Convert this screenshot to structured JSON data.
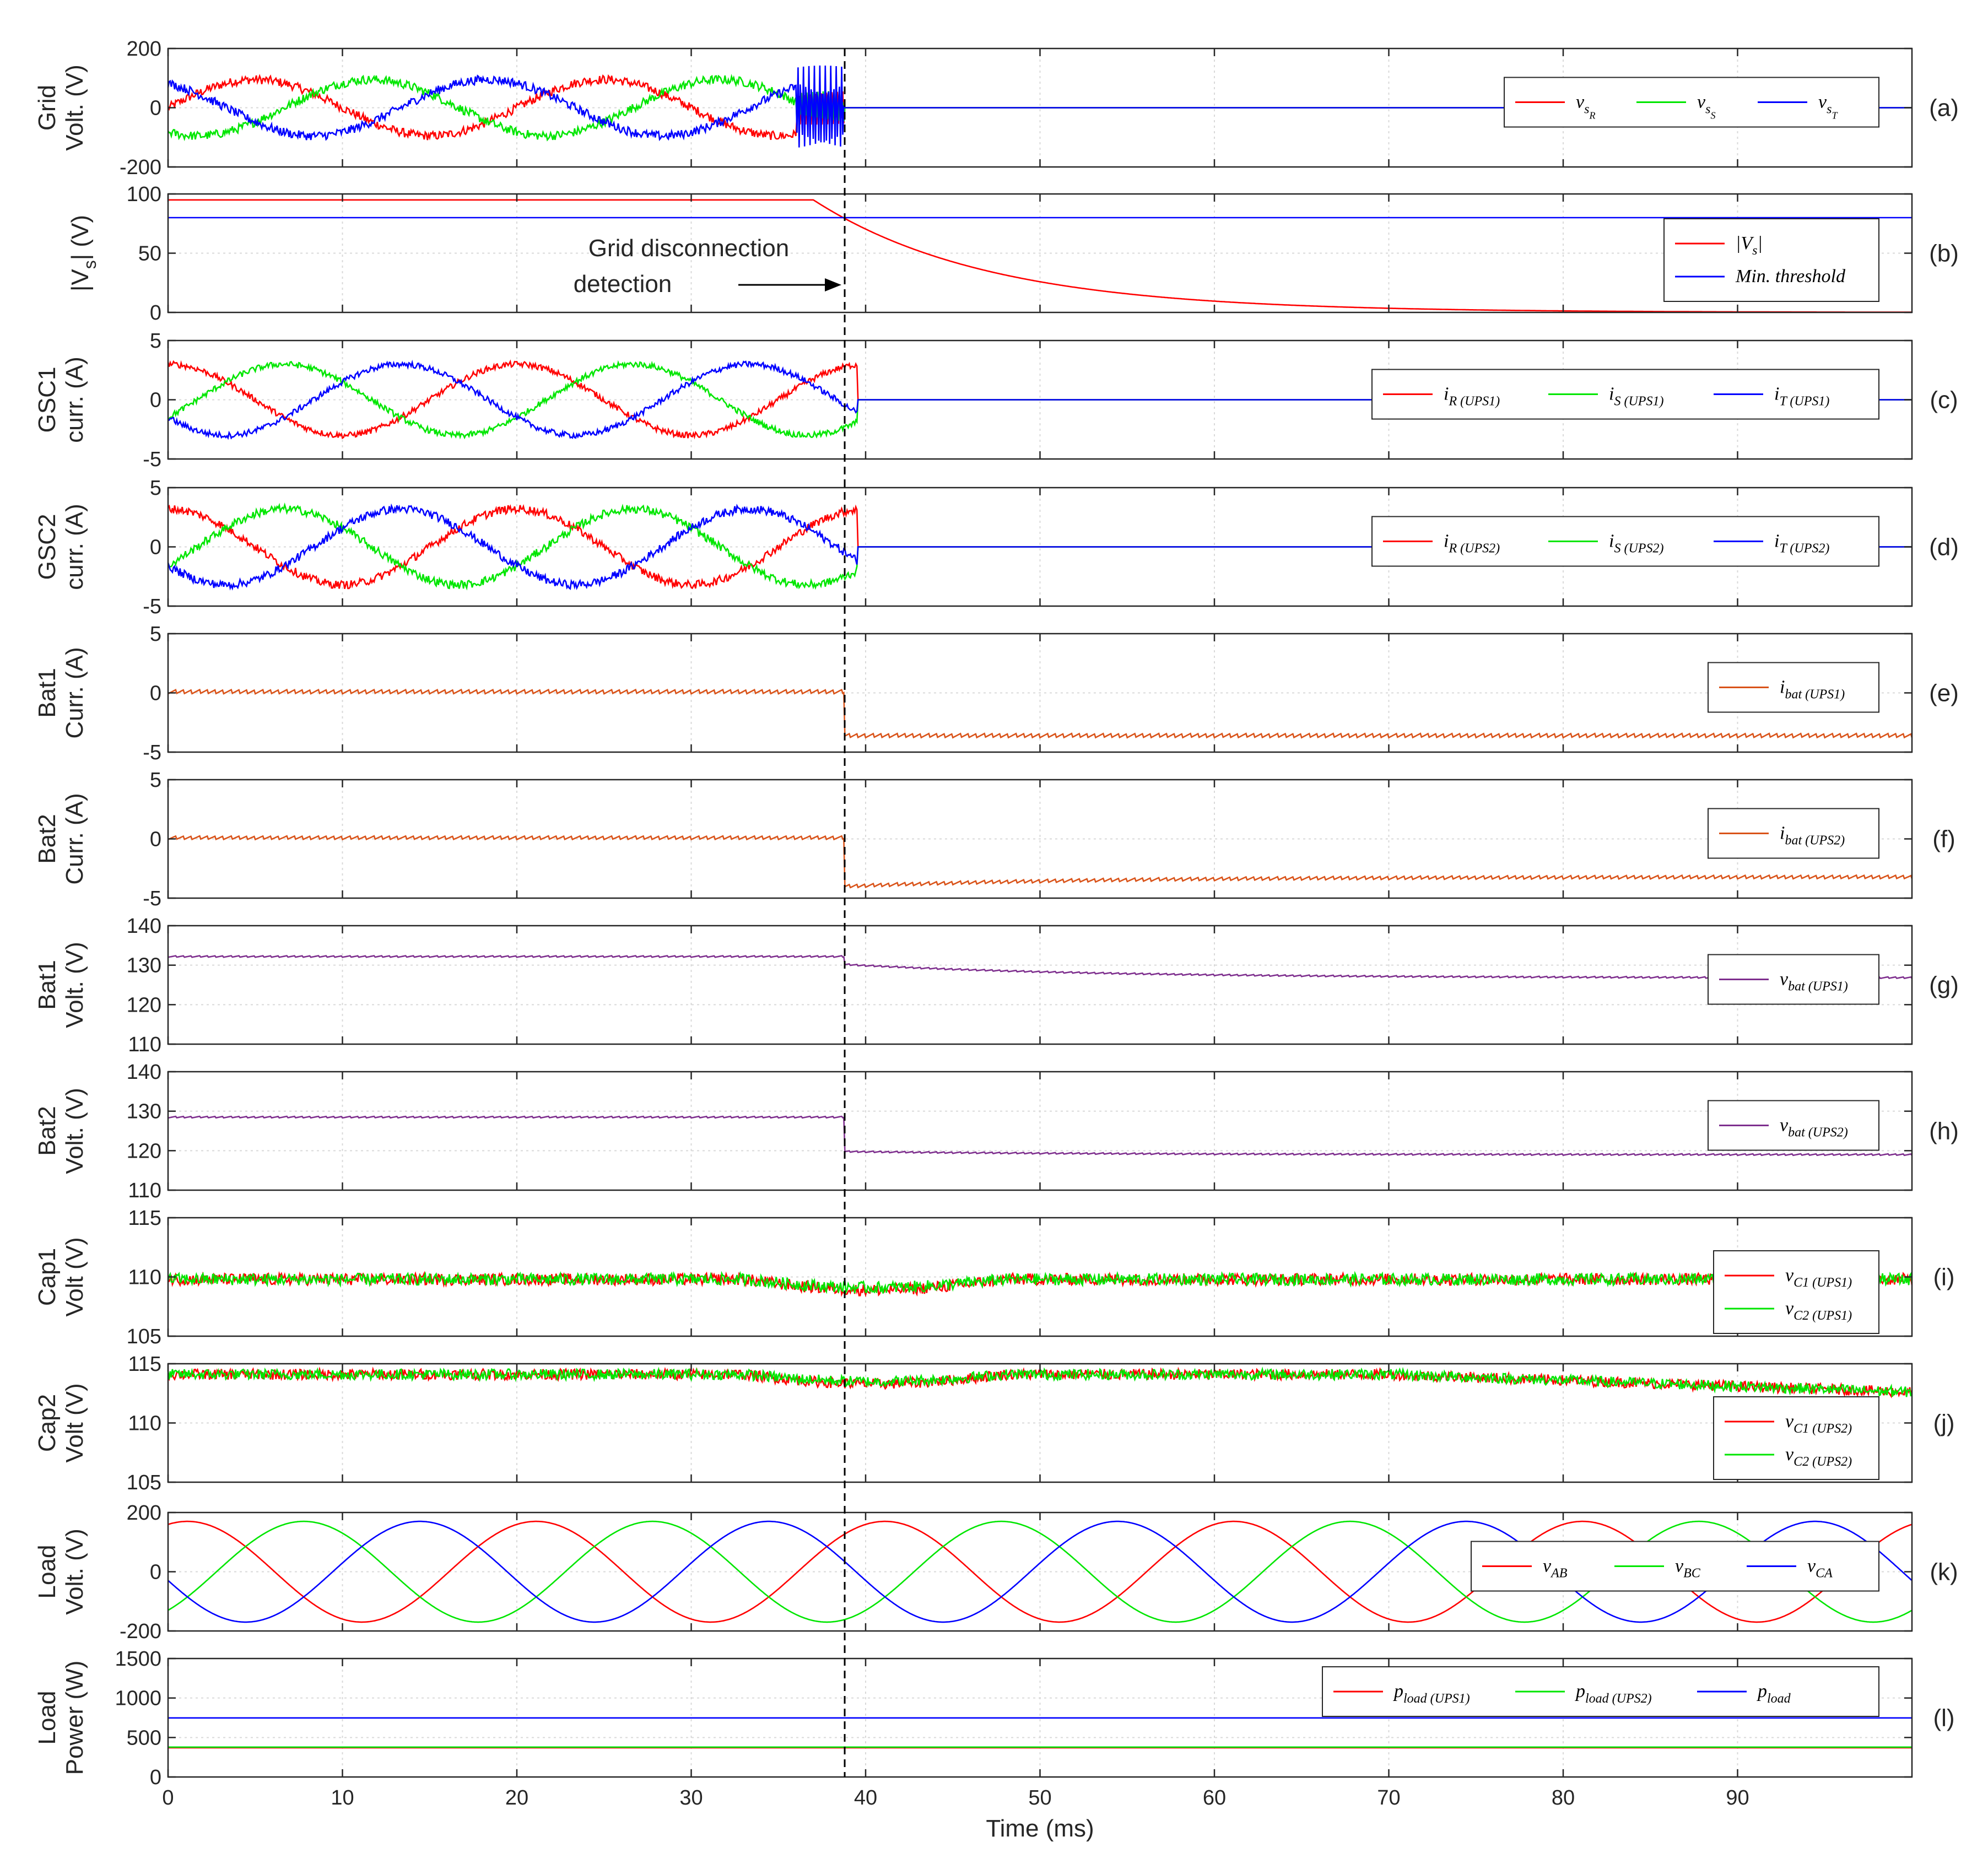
{
  "colors": {
    "red": "#ff0000",
    "green": "#00e600",
    "blue": "#0000ff",
    "orange": "#d95319",
    "purple": "#7e2f8e",
    "axis": "#262626",
    "grid": "#d9d9d9",
    "dash": "#000000"
  },
  "xaxis": {
    "label": "Time (ms)",
    "ticks": [
      "0",
      "10",
      "20",
      "30",
      "40",
      "50",
      "60",
      "70",
      "80",
      "90"
    ],
    "range": [
      0,
      100
    ]
  },
  "event": {
    "time_ms": 38.8
  },
  "annotation": {
    "lines": [
      "Grid disconnection",
      "detection"
    ]
  },
  "chart_data": [
    {
      "id": "a",
      "type": "line",
      "tag": "(a)",
      "ylabel": [
        "Grid",
        "Volt. (V)"
      ],
      "ylim": [
        -200,
        200
      ],
      "yticks": [
        "200",
        "0",
        "-200"
      ],
      "legend": [
        {
          "main": "v",
          "sub": "s",
          "subsub": "R"
        },
        {
          "main": "v",
          "sub": "s",
          "subsub": "S"
        },
        {
          "main": "v",
          "sub": "s",
          "subsub": "T"
        }
      ],
      "series": [
        {
          "name": "v_sR",
          "color": "red",
          "kind": "sine",
          "amp": 95,
          "phase": 0,
          "noise": 15,
          "until_ms": 38.8,
          "after": 0
        },
        {
          "name": "v_sS",
          "color": "green",
          "kind": "sine",
          "amp": 95,
          "phase": -120,
          "noise": 15,
          "until_ms": 38.8,
          "after": 0
        },
        {
          "name": "v_sT",
          "color": "blue",
          "kind": "sine",
          "amp": 95,
          "phase": 120,
          "noise": 15,
          "until_ms": 38.8,
          "after": 0
        }
      ]
    },
    {
      "id": "b",
      "type": "line",
      "tag": "(b)",
      "ylabel": [
        "|V",
        "s",
        "| (V)"
      ],
      "ylim": [
        0,
        100
      ],
      "yticks": [
        "100",
        "50",
        "0"
      ],
      "legend": [
        {
          "main": "|V",
          "sub": "s",
          "after": "|"
        },
        {
          "main": "Min. threshold"
        }
      ],
      "series": [
        {
          "name": "|V_s|",
          "color": "red",
          "kind": "decay",
          "start": 95,
          "tau_ms": 10,
          "from_ms": 37
        },
        {
          "name": "Min. threshold",
          "color": "blue",
          "kind": "const",
          "value": 80
        }
      ]
    },
    {
      "id": "c",
      "type": "line",
      "tag": "(c)",
      "ylabel": [
        "GSC1",
        "curr. (A)"
      ],
      "ylim": [
        -5,
        5
      ],
      "yticks": [
        "5",
        "0",
        "-5"
      ],
      "legend": [
        {
          "main": "i",
          "sub": "R (UPS1)"
        },
        {
          "main": "i",
          "sub": "S (UPS1)"
        },
        {
          "main": "i",
          "sub": "T (UPS1)"
        }
      ],
      "series": [
        {
          "name": "i_R (UPS1)",
          "color": "red",
          "kind": "sine",
          "amp": 3.0,
          "phase": 90,
          "noise": 0.25,
          "until_ms": 39.5,
          "after": 0
        },
        {
          "name": "i_S (UPS1)",
          "color": "green",
          "kind": "sine",
          "amp": 3.0,
          "phase": -30,
          "noise": 0.25,
          "until_ms": 39.5,
          "after": 0
        },
        {
          "name": "i_T (UPS1)",
          "color": "blue",
          "kind": "sine",
          "amp": 3.0,
          "phase": 210,
          "noise": 0.25,
          "until_ms": 39.5,
          "after": 0
        }
      ]
    },
    {
      "id": "d",
      "type": "line",
      "tag": "(d)",
      "ylabel": [
        "GSC2",
        "curr. (A)"
      ],
      "ylim": [
        -5,
        5
      ],
      "yticks": [
        "5",
        "0",
        "-5"
      ],
      "legend": [
        {
          "main": "i",
          "sub": "R (UPS2)"
        },
        {
          "main": "i",
          "sub": "S (UPS2)"
        },
        {
          "main": "i",
          "sub": "T (UPS2)"
        }
      ],
      "series": [
        {
          "name": "i_R (UPS2)",
          "color": "red",
          "kind": "sine",
          "amp": 3.2,
          "phase": 90,
          "noise": 0.35,
          "until_ms": 39.5,
          "after": 0
        },
        {
          "name": "i_S (UPS2)",
          "color": "green",
          "kind": "sine",
          "amp": 3.2,
          "phase": -30,
          "noise": 0.35,
          "until_ms": 39.5,
          "after": 0
        },
        {
          "name": "i_T (UPS2)",
          "color": "blue",
          "kind": "sine",
          "amp": 3.2,
          "phase": 210,
          "noise": 0.35,
          "until_ms": 39.5,
          "after": 0
        }
      ]
    },
    {
      "id": "e",
      "type": "line",
      "tag": "(e)",
      "ylabel": [
        "Bat1",
        "Curr. (A)"
      ],
      "ylim": [
        -5,
        5
      ],
      "yticks": [
        "5",
        "0",
        "-5"
      ],
      "legend": [
        {
          "main": "i",
          "sub": "bat (UPS1)"
        }
      ],
      "series": [
        {
          "name": "i_bat (UPS1)",
          "color": "orange",
          "kind": "step",
          "before": 0.1,
          "after": -3.6,
          "ripple": 0.35,
          "step_ms": 38.8
        }
      ]
    },
    {
      "id": "f",
      "type": "line",
      "tag": "(f)",
      "ylabel": [
        "Bat2",
        "Curr. (A)"
      ],
      "ylim": [
        -5,
        5
      ],
      "yticks": [
        "5",
        "0",
        "-5"
      ],
      "legend": [
        {
          "main": "i",
          "sub": "bat (UPS2)"
        }
      ],
      "series": [
        {
          "name": "i_bat (UPS2)",
          "color": "orange",
          "kind": "step",
          "before": 0.1,
          "after": -4.0,
          "recover_to": -3.2,
          "ripple": 0.3,
          "step_ms": 38.8
        }
      ]
    },
    {
      "id": "g",
      "type": "line",
      "tag": "(g)",
      "ylabel": [
        "Bat1",
        "Volt. (V)"
      ],
      "ylim": [
        110,
        140
      ],
      "yticks": [
        "140",
        "130",
        "120",
        "110"
      ],
      "legend": [
        {
          "main": "v",
          "sub": "bat (UPS1)"
        }
      ],
      "series": [
        {
          "name": "v_bat (UPS1)",
          "color": "purple",
          "kind": "step",
          "before": 132.2,
          "after": 130.2,
          "recover_to": 126.8,
          "ripple": 0.4,
          "step_ms": 38.8
        }
      ]
    },
    {
      "id": "h",
      "type": "line",
      "tag": "(h)",
      "ylabel": [
        "Bat2",
        "Volt. (V)"
      ],
      "ylim": [
        110,
        140
      ],
      "yticks": [
        "140",
        "130",
        "120",
        "110"
      ],
      "legend": [
        {
          "main": "v",
          "sub": "bat (UPS2)"
        }
      ],
      "series": [
        {
          "name": "v_bat (UPS2)",
          "color": "purple",
          "kind": "step",
          "before": 128.5,
          "after": 119.8,
          "recover_to": 119.0,
          "ripple": 0.4,
          "step_ms": 38.8
        }
      ]
    },
    {
      "id": "i",
      "type": "line",
      "tag": "(i)",
      "ylabel": [
        "Cap1",
        "Volt (V)"
      ],
      "ylim": [
        105,
        115
      ],
      "yticks": [
        "115",
        "110",
        "105"
      ],
      "legend": [
        {
          "main": "v",
          "sub": "C1 (UPS1)"
        },
        {
          "main": "v",
          "sub": "C2 (UPS1)"
        }
      ],
      "series": [
        {
          "name": "v_C1 (UPS1)",
          "color": "red",
          "kind": "noisy",
          "level": 109.8,
          "dip": 0.9,
          "noise": 0.5
        },
        {
          "name": "v_C2 (UPS1)",
          "color": "green",
          "kind": "noisy",
          "level": 109.8,
          "dip": 0.7,
          "noise": 0.5
        }
      ]
    },
    {
      "id": "j",
      "type": "line",
      "tag": "(j)",
      "ylabel": [
        "Cap2",
        "Volt (V)"
      ],
      "ylim": [
        105,
        115
      ],
      "yticks": [
        "115",
        "110",
        "105"
      ],
      "legend": [
        {
          "main": "v",
          "sub": "C1 (UPS2)"
        },
        {
          "main": "v",
          "sub": "C2 (UPS2)"
        }
      ],
      "series": [
        {
          "name": "v_C1 (UPS2)",
          "color": "red",
          "kind": "noisy",
          "level": 114.1,
          "dip": 0.8,
          "noise": 0.45,
          "drift": -1.5
        },
        {
          "name": "v_C2 (UPS2)",
          "color": "green",
          "kind": "noisy",
          "level": 114.1,
          "dip": 0.6,
          "noise": 0.45,
          "drift": -1.5
        }
      ]
    },
    {
      "id": "k",
      "type": "line",
      "tag": "(k)",
      "ylabel": [
        "Load",
        "Volt. (V)"
      ],
      "ylim": [
        -200,
        200
      ],
      "yticks": [
        "200",
        "0",
        "-200"
      ],
      "legend": [
        {
          "main": "v",
          "sub": "AB"
        },
        {
          "main": "v",
          "sub": "BC"
        },
        {
          "main": "v",
          "sub": "CA"
        }
      ],
      "series": [
        {
          "name": "v_AB",
          "color": "red",
          "kind": "sine",
          "amp": 170,
          "phase": 70,
          "noise": 0
        },
        {
          "name": "v_BC",
          "color": "green",
          "kind": "sine",
          "amp": 170,
          "phase": -50,
          "noise": 0
        },
        {
          "name": "v_CA",
          "color": "blue",
          "kind": "sine",
          "amp": 170,
          "phase": 190,
          "noise": 0
        }
      ]
    },
    {
      "id": "l",
      "type": "line",
      "tag": "(l)",
      "ylabel": [
        "Load",
        "Power (W)"
      ],
      "ylim": [
        0,
        1500
      ],
      "yticks": [
        "1500",
        "1000",
        "500",
        "0"
      ],
      "legend": [
        {
          "main": "p",
          "sub": "load (UPS1)"
        },
        {
          "main": "p",
          "sub": "load (UPS2)"
        },
        {
          "main": "p",
          "sub": "load"
        }
      ],
      "series": [
        {
          "name": "p_load (UPS1)",
          "color": "red",
          "kind": "const",
          "value": 370
        },
        {
          "name": "p_load (UPS2)",
          "color": "green",
          "kind": "const",
          "value": 378
        },
        {
          "name": "p_load",
          "color": "blue",
          "kind": "const",
          "value": 748
        }
      ]
    }
  ]
}
